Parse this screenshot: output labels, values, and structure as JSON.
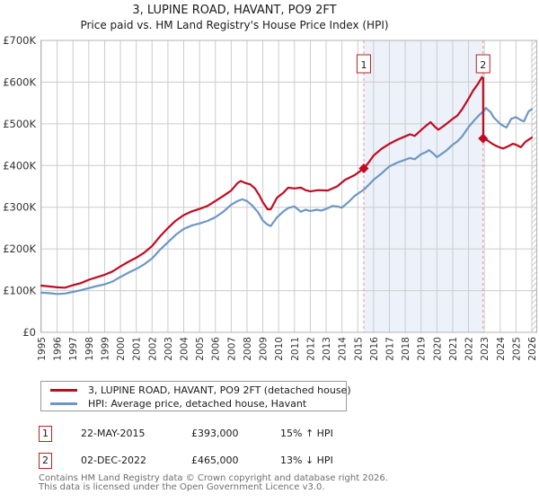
{
  "title": "3, LUPINE ROAD, HAVANT, PO9 2FT",
  "subtitle": "Price paid vs. HM Land Registry's House Price Index (HPI)",
  "chart_data": {
    "type": "line",
    "xlim": [
      1995,
      2026
    ],
    "ylim": [
      0,
      700000
    ],
    "x_ticks": [
      1995,
      1996,
      1997,
      1998,
      1999,
      2000,
      2001,
      2002,
      2003,
      2004,
      2005,
      2006,
      2007,
      2008,
      2009,
      2010,
      2011,
      2012,
      2013,
      2014,
      2015,
      2016,
      2017,
      2018,
      2019,
      2020,
      2021,
      2022,
      2023,
      2024,
      2025,
      2026
    ],
    "y_ticks": [
      {
        "value": 0,
        "label": "£0"
      },
      {
        "value": 100000,
        "label": "£100K"
      },
      {
        "value": 200000,
        "label": "£200K"
      },
      {
        "value": 300000,
        "label": "£300K"
      },
      {
        "value": 400000,
        "label": "£400K"
      },
      {
        "value": 500000,
        "label": "£500K"
      },
      {
        "value": 600000,
        "label": "£600K"
      },
      {
        "value": 700000,
        "label": "£700K"
      }
    ],
    "grid": true,
    "legend_position": "bottom-left",
    "colors": {
      "property_line": "#c00c23",
      "hpi_line": "#6d97c6",
      "shaded_span": "#edf1f9",
      "event_dashed_line": "#f09090",
      "grid": "#cccccc",
      "plot_border": "#b3b3b3",
      "hatch": "#c9c9c9",
      "marker_box_border": "#b22222"
    },
    "shaded_span": {
      "from": 2015.38,
      "to": 2022.92
    },
    "hatched_right_edge": true,
    "sale_markers": [
      {
        "label": "1",
        "year": 2015.38,
        "price": 393000
      },
      {
        "label": "2",
        "year": 2022.92,
        "price": 465000
      }
    ],
    "series": [
      {
        "name": "3, LUPINE ROAD, HAVANT, PO9 2FT (detached house)",
        "color": "#c00c23",
        "points": [
          [
            1995.0,
            112000
          ],
          [
            1995.5,
            110000
          ],
          [
            1996.0,
            108000
          ],
          [
            1996.5,
            107000
          ],
          [
            1997.0,
            113000
          ],
          [
            1997.5,
            118000
          ],
          [
            1998.0,
            126000
          ],
          [
            1998.5,
            132000
          ],
          [
            1999.0,
            138000
          ],
          [
            1999.5,
            146000
          ],
          [
            2000.0,
            158000
          ],
          [
            2000.5,
            169000
          ],
          [
            2001.0,
            179000
          ],
          [
            2001.5,
            191000
          ],
          [
            2002.0,
            207000
          ],
          [
            2002.5,
            230000
          ],
          [
            2003.0,
            250000
          ],
          [
            2003.5,
            268000
          ],
          [
            2004.0,
            281000
          ],
          [
            2004.5,
            290000
          ],
          [
            2005.0,
            296000
          ],
          [
            2005.5,
            303000
          ],
          [
            2006.0,
            315000
          ],
          [
            2006.5,
            327000
          ],
          [
            2007.0,
            340000
          ],
          [
            2007.4,
            358000
          ],
          [
            2007.6,
            363000
          ],
          [
            2007.9,
            358000
          ],
          [
            2008.2,
            355000
          ],
          [
            2008.5,
            345000
          ],
          [
            2008.8,
            327000
          ],
          [
            2009.0,
            312000
          ],
          [
            2009.3,
            295000
          ],
          [
            2009.5,
            295000
          ],
          [
            2009.9,
            323000
          ],
          [
            2010.3,
            335000
          ],
          [
            2010.6,
            347000
          ],
          [
            2011.0,
            345000
          ],
          [
            2011.4,
            347000
          ],
          [
            2011.7,
            341000
          ],
          [
            2012.0,
            338000
          ],
          [
            2012.5,
            341000
          ],
          [
            2013.1,
            340000
          ],
          [
            2013.7,
            350000
          ],
          [
            2014.2,
            366000
          ],
          [
            2014.8,
            377000
          ],
          [
            2015.1,
            385000
          ],
          [
            2015.38,
            393000
          ],
          [
            2015.7,
            408000
          ],
          [
            2016.0,
            424000
          ],
          [
            2016.5,
            440000
          ],
          [
            2017.0,
            452000
          ],
          [
            2017.5,
            462000
          ],
          [
            2018.0,
            470000
          ],
          [
            2018.3,
            475000
          ],
          [
            2018.6,
            471000
          ],
          [
            2019.0,
            485000
          ],
          [
            2019.3,
            495000
          ],
          [
            2019.6,
            504000
          ],
          [
            2019.9,
            492000
          ],
          [
            2020.1,
            486000
          ],
          [
            2020.4,
            494000
          ],
          [
            2020.7,
            503000
          ],
          [
            2021.0,
            512000
          ],
          [
            2021.3,
            520000
          ],
          [
            2021.6,
            535000
          ],
          [
            2022.0,
            560000
          ],
          [
            2022.3,
            580000
          ],
          [
            2022.6,
            596000
          ],
          [
            2022.85,
            612000
          ],
          [
            2022.92,
            610000
          ],
          [
            2022.93,
            465000
          ],
          [
            2023.2,
            460000
          ],
          [
            2023.5,
            452000
          ],
          [
            2023.8,
            446000
          ],
          [
            2024.0,
            443000
          ],
          [
            2024.2,
            441000
          ],
          [
            2024.5,
            446000
          ],
          [
            2024.8,
            452000
          ],
          [
            2025.0,
            450000
          ],
          [
            2025.3,
            444000
          ],
          [
            2025.6,
            457000
          ],
          [
            2026.0,
            467000
          ]
        ]
      },
      {
        "name": "HPI: Average price, detached house, Havant",
        "color": "#6d97c6",
        "points": [
          [
            1995.0,
            95000
          ],
          [
            1995.5,
            94000
          ],
          [
            1996.0,
            92000
          ],
          [
            1996.5,
            93000
          ],
          [
            1997.0,
            97000
          ],
          [
            1997.5,
            101000
          ],
          [
            1998.0,
            106000
          ],
          [
            1998.5,
            111000
          ],
          [
            1999.0,
            115000
          ],
          [
            1999.5,
            122000
          ],
          [
            2000.0,
            133000
          ],
          [
            2000.5,
            143000
          ],
          [
            2001.0,
            152000
          ],
          [
            2001.5,
            163000
          ],
          [
            2002.0,
            177000
          ],
          [
            2002.5,
            198000
          ],
          [
            2003.0,
            216000
          ],
          [
            2003.5,
            234000
          ],
          [
            2004.0,
            248000
          ],
          [
            2004.5,
            256000
          ],
          [
            2005.0,
            261000
          ],
          [
            2005.5,
            267000
          ],
          [
            2006.0,
            276000
          ],
          [
            2006.5,
            289000
          ],
          [
            2007.0,
            306000
          ],
          [
            2007.4,
            315000
          ],
          [
            2007.7,
            319000
          ],
          [
            2008.0,
            315000
          ],
          [
            2008.3,
            305000
          ],
          [
            2008.7,
            288000
          ],
          [
            2009.0,
            268000
          ],
          [
            2009.3,
            258000
          ],
          [
            2009.5,
            255000
          ],
          [
            2009.9,
            276000
          ],
          [
            2010.3,
            290000
          ],
          [
            2010.6,
            298000
          ],
          [
            2011.0,
            302000
          ],
          [
            2011.4,
            289000
          ],
          [
            2011.7,
            294000
          ],
          [
            2012.0,
            291000
          ],
          [
            2012.4,
            294000
          ],
          [
            2012.7,
            292000
          ],
          [
            2013.0,
            296000
          ],
          [
            2013.4,
            303000
          ],
          [
            2013.7,
            302000
          ],
          [
            2014.0,
            299000
          ],
          [
            2014.4,
            312000
          ],
          [
            2014.8,
            327000
          ],
          [
            2015.1,
            335000
          ],
          [
            2015.38,
            342000
          ],
          [
            2015.7,
            354000
          ],
          [
            2016.0,
            366000
          ],
          [
            2016.5,
            381000
          ],
          [
            2017.0,
            398000
          ],
          [
            2017.5,
            407000
          ],
          [
            2018.0,
            414000
          ],
          [
            2018.3,
            418000
          ],
          [
            2018.6,
            415000
          ],
          [
            2019.0,
            427000
          ],
          [
            2019.3,
            432000
          ],
          [
            2019.5,
            437000
          ],
          [
            2019.8,
            428000
          ],
          [
            2020.0,
            420000
          ],
          [
            2020.3,
            428000
          ],
          [
            2020.6,
            436000
          ],
          [
            2021.0,
            450000
          ],
          [
            2021.3,
            458000
          ],
          [
            2021.6,
            470000
          ],
          [
            2022.0,
            492000
          ],
          [
            2022.4,
            510000
          ],
          [
            2022.7,
            522000
          ],
          [
            2023.0,
            532000
          ],
          [
            2023.1,
            538000
          ],
          [
            2023.4,
            528000
          ],
          [
            2023.6,
            515000
          ],
          [
            2024.0,
            500000
          ],
          [
            2024.2,
            495000
          ],
          [
            2024.4,
            491000
          ],
          [
            2024.7,
            512000
          ],
          [
            2025.0,
            516000
          ],
          [
            2025.3,
            509000
          ],
          [
            2025.5,
            506000
          ],
          [
            2025.8,
            530000
          ],
          [
            2026.0,
            535000
          ]
        ]
      }
    ]
  },
  "legend": {
    "items": [
      {
        "label": "3, LUPINE ROAD, HAVANT, PO9 2FT (detached house)",
        "color": "#c00c23"
      },
      {
        "label": "HPI: Average price, detached house, Havant",
        "color": "#6d97c6"
      }
    ]
  },
  "annotations": [
    {
      "index": "1",
      "date": "22-MAY-2015",
      "price": "£393,000",
      "hpi": "15% ↑ HPI"
    },
    {
      "index": "2",
      "date": "02-DEC-2022",
      "price": "£465,000",
      "hpi": "13% ↓ HPI"
    }
  ],
  "footer": {
    "line1": "Contains HM Land Registry data © Crown copyright and database right 2026.",
    "line2": "This data is licensed under the Open Government Licence v3.0."
  }
}
